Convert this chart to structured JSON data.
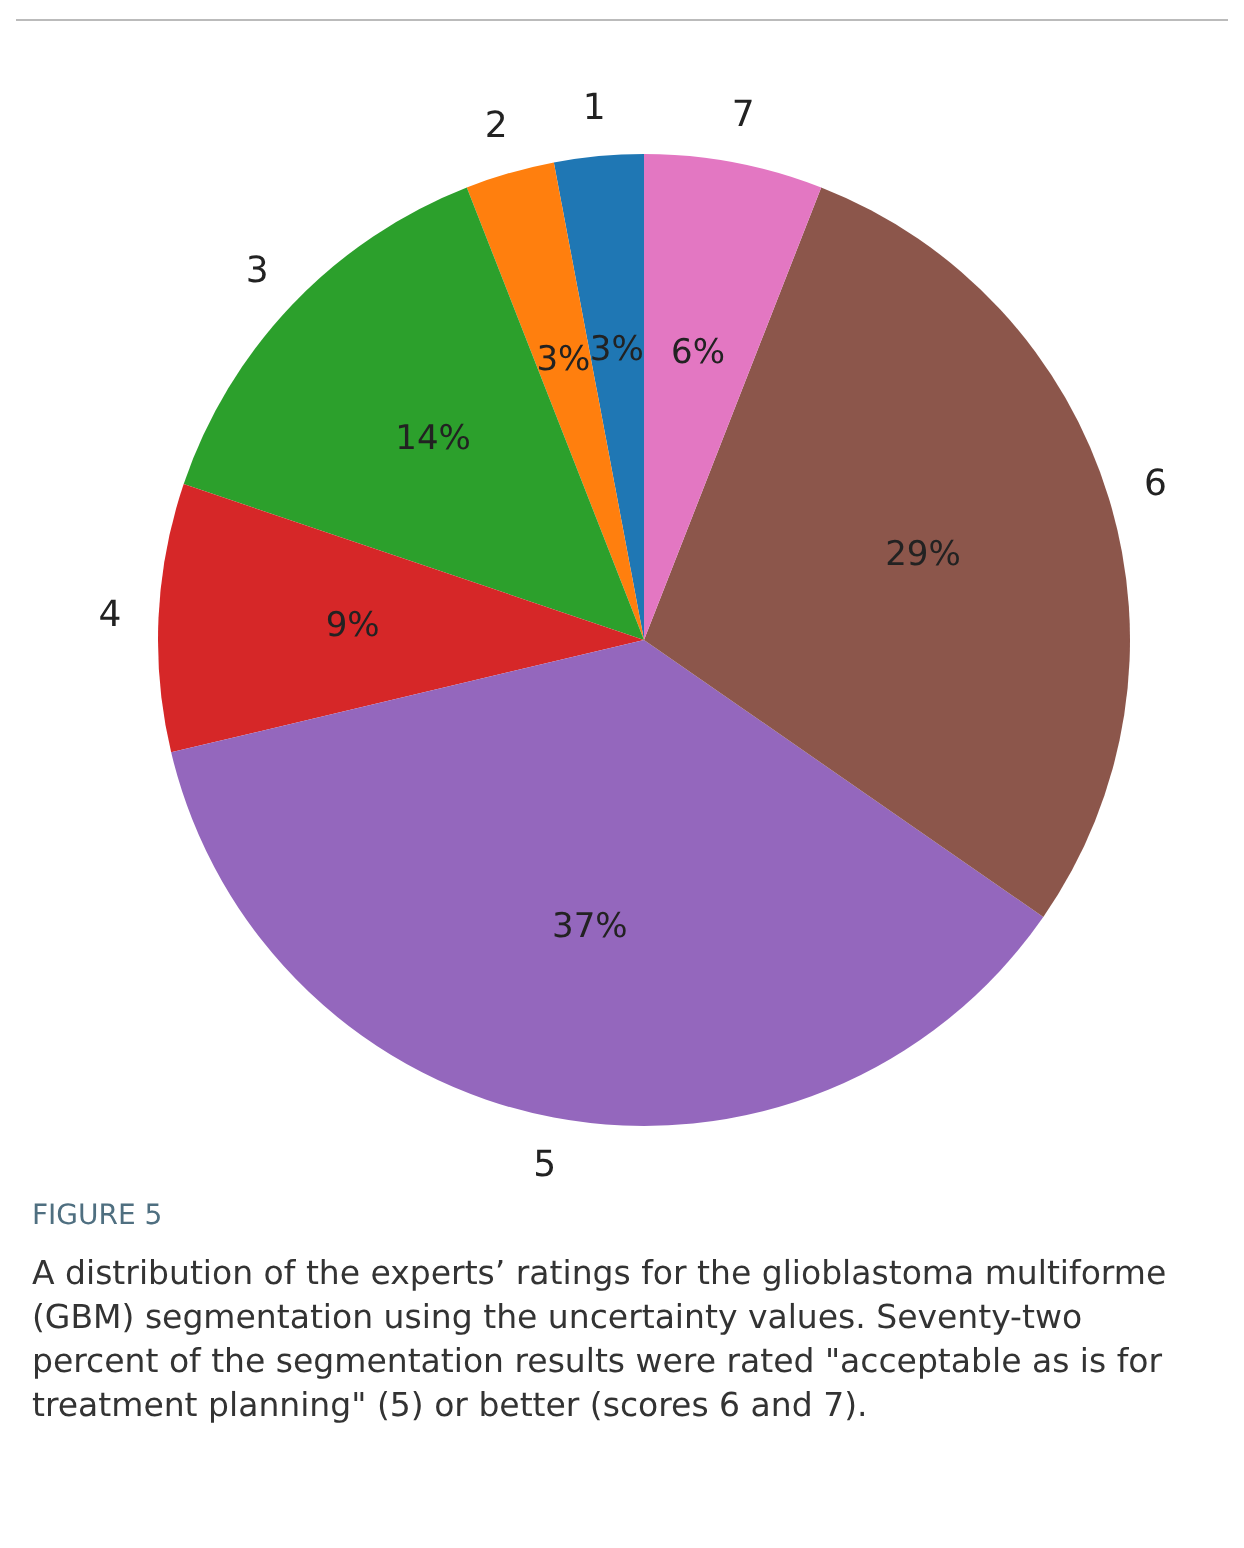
{
  "chart_data": {
    "type": "pie",
    "title": "FIGURE 5",
    "categories": [
      "1",
      "2",
      "3",
      "4",
      "5",
      "6",
      "7"
    ],
    "values": [
      3,
      3,
      14,
      9,
      37,
      29,
      6
    ],
    "value_labels": [
      "3%",
      "3%",
      "14%",
      "9%",
      "37%",
      "29%",
      "6%"
    ],
    "colors": [
      "#1f77b4",
      "#ff7f0e",
      "#2ca02c",
      "#d62728",
      "#9467bd",
      "#8c564b",
      "#e377c2"
    ],
    "annotations": [
      "A distribution of the experts’ ratings for the glioblastoma multiforme (GBM) segmentation using the uncertainty values. Seventy-two percent of the segmentation results were rated \"acceptable as is for treatment planning\" (5) or better (scores 6 and 7)."
    ]
  }
}
